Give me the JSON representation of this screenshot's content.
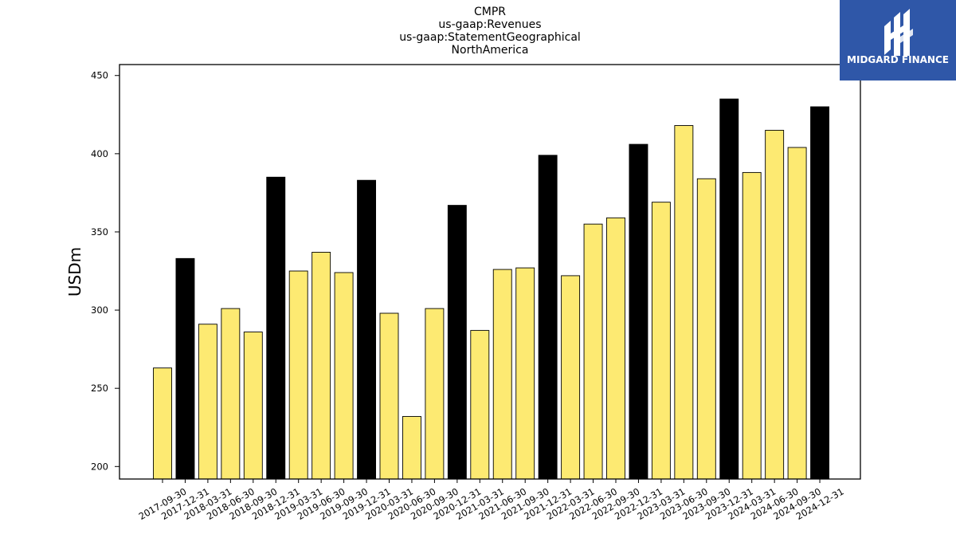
{
  "chart_data": {
    "type": "bar",
    "title_lines": [
      "CMPR",
      "us-gaap:Revenues",
      "us-gaap:StatementGeographical",
      "NorthAmerica"
    ],
    "ylabel": "USDm",
    "xlabel": "",
    "ylim": [
      192,
      457
    ],
    "yticks": [
      200,
      250,
      300,
      350,
      400,
      450
    ],
    "grid": false,
    "categories": [
      "2017-09-30",
      "2017-12-31",
      "2018-03-31",
      "2018-06-30",
      "2018-09-30",
      "2018-12-31",
      "2019-03-31",
      "2019-06-30",
      "2019-09-30",
      "2019-12-31",
      "2020-03-31",
      "2020-06-30",
      "2020-09-30",
      "2020-12-31",
      "2021-03-31",
      "2021-06-30",
      "2021-09-30",
      "2021-12-31",
      "2022-03-31",
      "2022-06-30",
      "2022-09-30",
      "2022-12-31",
      "2023-03-31",
      "2023-06-30",
      "2023-09-30",
      "2023-12-31",
      "2024-03-31",
      "2024-06-30",
      "2024-09-30",
      "2024-12-31"
    ],
    "values": [
      263,
      333,
      291,
      301,
      286,
      385,
      325,
      337,
      324,
      383,
      298,
      232,
      301,
      367,
      287,
      326,
      327,
      399,
      322,
      355,
      359,
      406,
      369,
      418,
      384,
      435,
      388,
      415,
      404,
      430
    ],
    "highlight": [
      false,
      true,
      false,
      false,
      false,
      true,
      false,
      false,
      false,
      true,
      false,
      false,
      false,
      true,
      false,
      false,
      false,
      true,
      false,
      false,
      false,
      true,
      false,
      false,
      false,
      true,
      false,
      false,
      false,
      true
    ],
    "colors": {
      "bar": "#fdea72",
      "highlight_bar": "#000000",
      "edge": "#000000"
    }
  },
  "logo": {
    "name": "MIDGARD FINANCE",
    "background": "#2f57a8"
  }
}
